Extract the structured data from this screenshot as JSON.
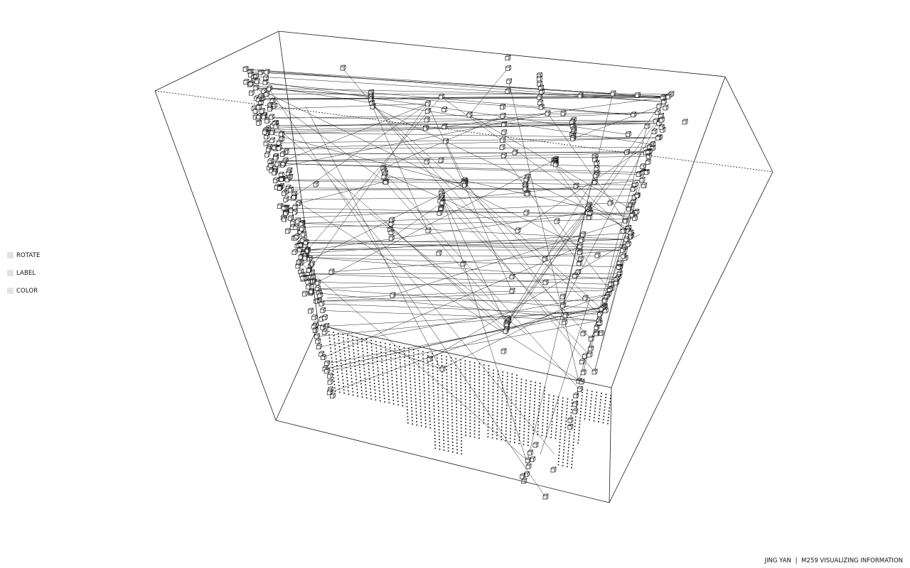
{
  "controls": {
    "rotate": {
      "label": "ROTATE",
      "checked": false
    },
    "label": {
      "label": "LABEL",
      "checked": false
    },
    "color": {
      "label": "COLOR",
      "checked": false
    }
  },
  "credits": {
    "author": "JING YAN",
    "separator": "|",
    "course": "M259 VISUALIZING INFORMATION"
  },
  "colors": {
    "background": "#ffffff",
    "ink": "#111111",
    "box_edge": "#1a1a1a",
    "checkbox_fill": "#e3e3e3"
  }
}
